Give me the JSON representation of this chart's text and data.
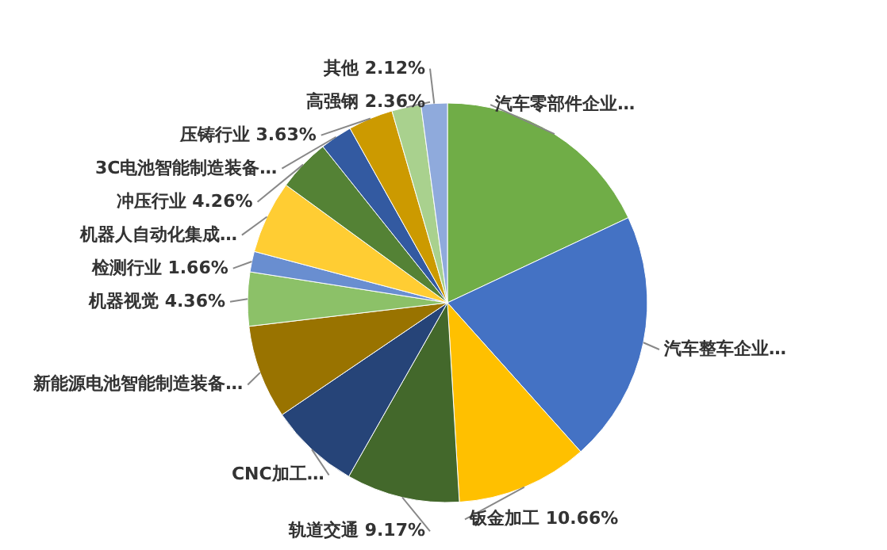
{
  "chart_data": {
    "type": "pie",
    "categories": [
      "汽车零部件企业…",
      "汽车整车企业…",
      "钣金加工",
      "轨道交通",
      "CNC加工…",
      "新能源电池智能制造装备…",
      "机器视觉",
      "检测行业",
      "机器人自动化集成…",
      "冲压行业",
      "3C电池智能制造装备…",
      "压铸行业",
      "高强钢",
      "其他"
    ],
    "values": [
      18,
      20.4,
      10.66,
      9.17,
      7.3,
      7.6,
      4.36,
      1.66,
      5.9,
      4.26,
      2.6,
      3.63,
      2.36,
      2.12
    ],
    "value_labels": [
      null,
      null,
      "10.66%",
      "9.17%",
      null,
      null,
      "4.36%",
      "1.66%",
      null,
      "4.26%",
      null,
      "3.63%",
      "2.36%",
      "2.12%"
    ],
    "colors": [
      "#70ad47",
      "#4472c4",
      "#ffc000",
      "#43682b",
      "#264478",
      "#997300",
      "#8cc168",
      "#698ed0",
      "#ffcd33",
      "#548235",
      "#335aa1",
      "#cc9a00",
      "#a9d18e",
      "#8faadc"
    ]
  }
}
